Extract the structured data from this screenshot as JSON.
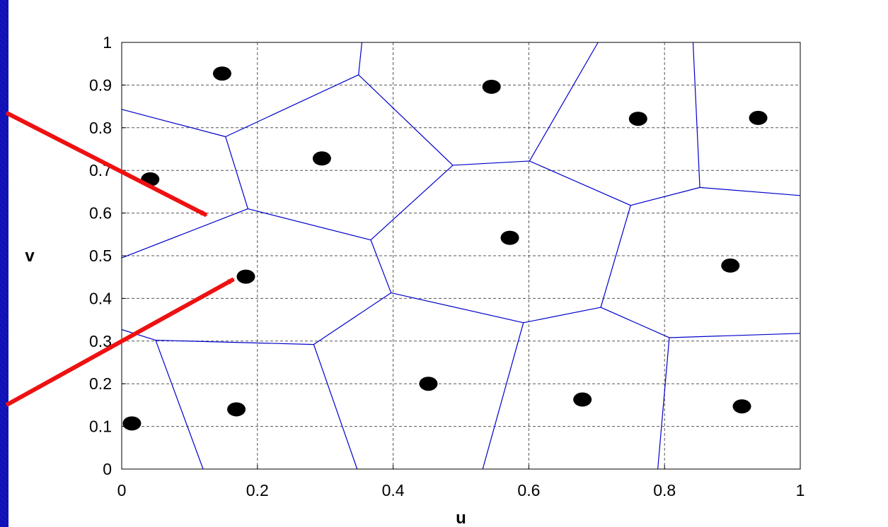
{
  "chart_data": {
    "type": "scatter",
    "xlabel": "u",
    "ylabel": "v",
    "xlim": [
      0,
      1
    ],
    "ylim": [
      0,
      1
    ],
    "grid": true,
    "xticks": [
      "0",
      "0.2",
      "0.4",
      "0.6",
      "0.8",
      "1"
    ],
    "xtick_values": [
      0,
      0.2,
      0.4,
      0.6,
      0.8,
      1
    ],
    "yticks": [
      "0",
      "0.1",
      "0.2",
      "0.3",
      "0.4",
      "0.5",
      "0.6",
      "0.7",
      "0.8",
      "0.9",
      "1"
    ],
    "ytick_values": [
      0,
      0.1,
      0.2,
      0.3,
      0.4,
      0.5,
      0.6,
      0.7,
      0.8,
      0.9,
      1
    ],
    "colors": {
      "points": "#000000",
      "edges": "#0000cc",
      "grid": "#555555",
      "arrows": "#ee1111"
    },
    "points": [
      {
        "x": 0.148,
        "y": 0.927
      },
      {
        "x": 0.545,
        "y": 0.896
      },
      {
        "x": 0.761,
        "y": 0.821
      },
      {
        "x": 0.938,
        "y": 0.823
      },
      {
        "x": 0.295,
        "y": 0.728
      },
      {
        "x": 0.042,
        "y": 0.679
      },
      {
        "x": 0.572,
        "y": 0.542
      },
      {
        "x": 0.897,
        "y": 0.477
      },
      {
        "x": 0.183,
        "y": 0.451
      },
      {
        "x": 0.452,
        "y": 0.2
      },
      {
        "x": 0.169,
        "y": 0.14
      },
      {
        "x": 0.679,
        "y": 0.163
      },
      {
        "x": 0.914,
        "y": 0.147
      },
      {
        "x": 0.015,
        "y": 0.107
      }
    ],
    "edges": [
      [
        [
          0.0,
          0.843
        ],
        [
          0.153,
          0.779
        ]
      ],
      [
        [
          0.153,
          0.779
        ],
        [
          0.349,
          0.924
        ]
      ],
      [
        [
          0.349,
          0.924
        ],
        [
          0.354,
          1.0
        ]
      ],
      [
        [
          0.349,
          0.924
        ],
        [
          0.488,
          0.712
        ]
      ],
      [
        [
          0.153,
          0.779
        ],
        [
          0.186,
          0.61
        ]
      ],
      [
        [
          0.0,
          0.495
        ],
        [
          0.186,
          0.61
        ]
      ],
      [
        [
          0.186,
          0.61
        ],
        [
          0.367,
          0.537
        ]
      ],
      [
        [
          0.367,
          0.537
        ],
        [
          0.488,
          0.712
        ]
      ],
      [
        [
          0.488,
          0.712
        ],
        [
          0.601,
          0.722
        ]
      ],
      [
        [
          0.601,
          0.722
        ],
        [
          0.702,
          1.0
        ]
      ],
      [
        [
          0.601,
          0.722
        ],
        [
          0.75,
          0.618
        ]
      ],
      [
        [
          0.75,
          0.618
        ],
        [
          0.852,
          0.66
        ]
      ],
      [
        [
          0.852,
          0.66
        ],
        [
          0.842,
          1.0
        ]
      ],
      [
        [
          0.852,
          0.66
        ],
        [
          1.0,
          0.641
        ]
      ],
      [
        [
          0.75,
          0.618
        ],
        [
          0.706,
          0.379
        ]
      ],
      [
        [
          0.367,
          0.537
        ],
        [
          0.397,
          0.413
        ]
      ],
      [
        [
          0.397,
          0.413
        ],
        [
          0.592,
          0.343
        ]
      ],
      [
        [
          0.592,
          0.343
        ],
        [
          0.706,
          0.379
        ]
      ],
      [
        [
          0.706,
          0.379
        ],
        [
          0.807,
          0.308
        ]
      ],
      [
        [
          0.807,
          0.308
        ],
        [
          1.0,
          0.318
        ]
      ],
      [
        [
          0.807,
          0.308
        ],
        [
          0.79,
          0.0
        ]
      ],
      [
        [
          0.592,
          0.343
        ],
        [
          0.532,
          0.0
        ]
      ],
      [
        [
          0.397,
          0.413
        ],
        [
          0.283,
          0.292
        ]
      ],
      [
        [
          0.283,
          0.292
        ],
        [
          0.347,
          0.0
        ]
      ],
      [
        [
          0.283,
          0.292
        ],
        [
          0.05,
          0.302
        ]
      ],
      [
        [
          0.0,
          0.327
        ],
        [
          0.05,
          0.302
        ]
      ],
      [
        [
          0.05,
          0.302
        ],
        [
          0.12,
          0.0
        ]
      ]
    ],
    "arrows": [
      {
        "from": [
          -0.17,
          0.835
        ],
        "to": [
          0.125,
          0.595
        ]
      },
      {
        "from": [
          -0.17,
          0.15
        ],
        "to": [
          0.165,
          0.445
        ]
      }
    ]
  }
}
